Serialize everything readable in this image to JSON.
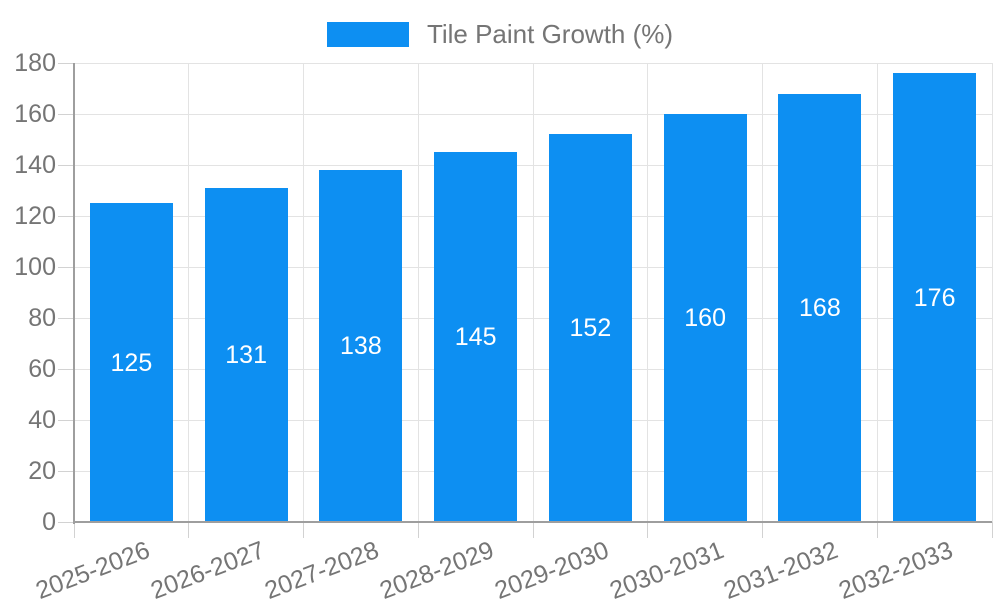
{
  "legend": {
    "label": "Tile Paint Growth (%)",
    "swatch_color": "#0d8ff2"
  },
  "chart_data": {
    "type": "bar",
    "title": "Tile Paint Growth (%)",
    "categories": [
      "2025-2026",
      "2026-2027",
      "2027-2028",
      "2028-2029",
      "2029-2030",
      "2030-2031",
      "2031-2032",
      "2032-2033"
    ],
    "values": [
      125,
      131,
      138,
      145,
      152,
      160,
      168,
      176
    ],
    "xlabel": "",
    "ylabel": "",
    "ylim": [
      0,
      180
    ],
    "ytick_step": 20,
    "yticks": [
      0,
      20,
      40,
      60,
      80,
      100,
      120,
      140,
      160,
      180
    ],
    "grid": true,
    "legend_position": "top-center",
    "bar_labels_shown": true,
    "colors": {
      "bar": "#0d8ff2",
      "bar_label": "#ffffff",
      "axis_text": "#757575",
      "grid": "#e3e3e3",
      "tick": "#d2d2d2",
      "axis_line": "#9e9e9e",
      "background": "#ffffff"
    }
  }
}
